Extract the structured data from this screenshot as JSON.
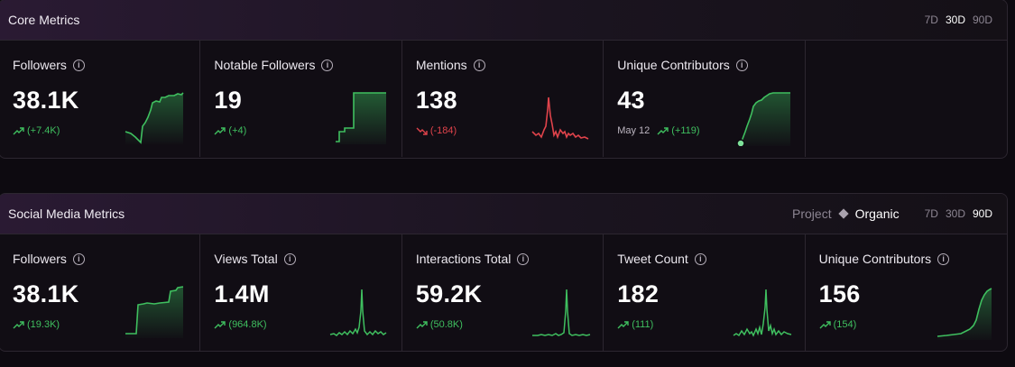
{
  "core": {
    "title": "Core Metrics",
    "ranges": [
      "7D",
      "30D",
      "90D"
    ],
    "active_range": "30D",
    "cards": [
      {
        "label": "Followers",
        "value": "38.1K",
        "delta": "(+7.4K)",
        "trend": "up"
      },
      {
        "label": "Notable Followers",
        "value": "19",
        "delta": "(+4)",
        "trend": "up"
      },
      {
        "label": "Mentions",
        "value": "138",
        "delta": "(-184)",
        "trend": "down"
      },
      {
        "label": "Unique Contributors",
        "value": "43",
        "date": "May 12",
        "delta": "(+119)",
        "trend": "up"
      }
    ]
  },
  "social": {
    "title": "Social Media Metrics",
    "toggle": {
      "left": "Project",
      "right": "Organic"
    },
    "ranges": [
      "7D",
      "30D",
      "90D"
    ],
    "active_range": "90D",
    "cards": [
      {
        "label": "Followers",
        "value": "38.1K",
        "delta": "(19.3K)",
        "trend": "up"
      },
      {
        "label": "Views Total",
        "value": "1.4M",
        "delta": "(964.8K)",
        "trend": "up"
      },
      {
        "label": "Interactions Total",
        "value": "59.2K",
        "delta": "(50.8K)",
        "trend": "up"
      },
      {
        "label": "Tweet Count",
        "value": "182",
        "delta": "(111)",
        "trend": "up"
      },
      {
        "label": "Unique Contributors",
        "value": "156",
        "delta": "(154)",
        "trend": "up"
      }
    ]
  },
  "icons": {
    "info": "info-icon",
    "trend_up": "trend-up-icon",
    "trend_down": "trend-down-icon"
  },
  "colors": {
    "up": "#3fbf5f",
    "down": "#e0434b",
    "background": "#0d0a10"
  }
}
